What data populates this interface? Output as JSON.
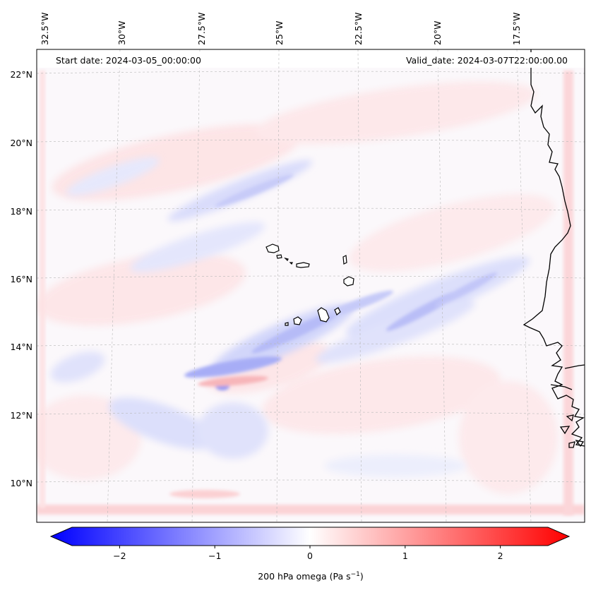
{
  "map": {
    "start_label": "Start date: 2024-03-05_00:00:00",
    "valid_label": "Valid_date: 2024-03-07T22:00:00.00",
    "lon_labels": [
      "32.5°W",
      "30°W",
      "27.5°W",
      "25°W",
      "22.5°W",
      "20°W",
      "17.5°W"
    ],
    "lat_labels": [
      "22°N",
      "20°N",
      "18°N",
      "16°N",
      "14°N",
      "12°N",
      "10°N"
    ]
  },
  "colorbar": {
    "label": "200 hPa omega (Pa s",
    "label_sup": "−1",
    "label_close": ")",
    "ticks": [
      "−2",
      "−1",
      "0",
      "1",
      "2"
    ],
    "tick_values": [
      -2,
      -1,
      0,
      1,
      2
    ],
    "range": [
      -2.5,
      2.5
    ],
    "negative_color": "#0000ff",
    "positive_color": "#ff0000"
  }
}
